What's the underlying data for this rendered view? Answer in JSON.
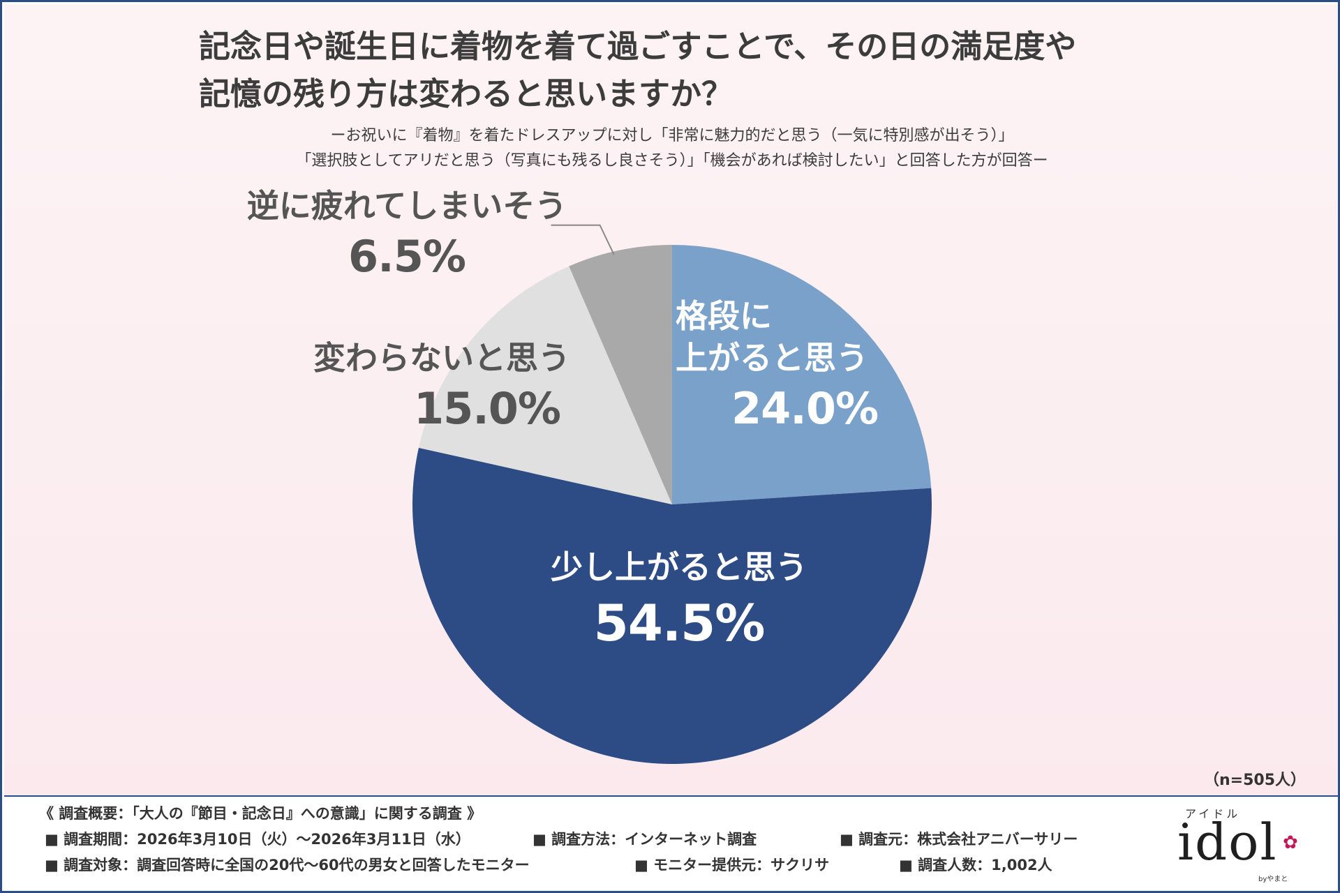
{
  "title_lines": [
    "記念日や誕生日に着物を着て過ごすことで、その日の満足度や",
    "記憶の残り方は変わると思いますか？"
  ],
  "subtitle_lines": [
    "ーお祝いに『着物』を着たドレスアップに対し「非常に魅力的だと思う（一気に特別感が出そう）」",
    "「選択肢としてアリだと思う（写真にも残るし良さそう）」「機会があれば検討したい」と回答した方が回答ー"
  ],
  "chart_data": {
    "type": "pie",
    "start": "12 o'clock, clockwise",
    "slices": [
      {
        "label_lines": [
          "格段に",
          "上がると思う"
        ],
        "value": 24.0,
        "value_text": "24.0%",
        "color": "#7aa1c9"
      },
      {
        "label_lines": [
          "少し上がると思う"
        ],
        "value": 54.5,
        "value_text": "54.5%",
        "color": "#2d4b85"
      },
      {
        "label_lines": [
          "変わらないと思う"
        ],
        "value": 15.0,
        "value_text": "15.0%",
        "color": "#e0e0e0"
      },
      {
        "label_lines": [
          "逆に疲れてしまいそう"
        ],
        "value": 6.5,
        "value_text": "6.5%",
        "color": "#a9a9a9"
      }
    ]
  },
  "sample_size": "（n=505人）",
  "footer": {
    "survey_title": "《 調査概要：「大人の『節目・記念日』への意識」に関する調査 》",
    "period": "調査期間：2026年3月10日（火）～2026年3月11日（水）",
    "method": "調査方法：インターネット調査",
    "organizer": "調査元：株式会社アニバーサリー",
    "target": "調査対象：調査回答時に全国の20代～60代の男女と回答したモニター",
    "provider": "モニター提供元：サクリサ",
    "count": "調査人数：1,002人"
  },
  "logo": {
    "kana": "アイドル",
    "word": "idol",
    "by": "byやまと"
  }
}
